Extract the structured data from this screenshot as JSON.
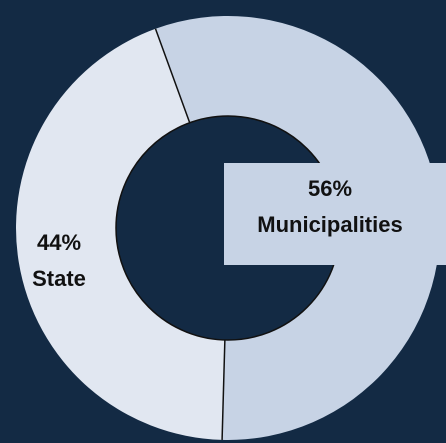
{
  "chart_data": {
    "type": "pie",
    "donut": true,
    "title": "",
    "slices": [
      {
        "category": "Municipalities",
        "value": 56,
        "value_label": "56%",
        "color": "#c7d3e5",
        "label_background": "#c7d3e5"
      },
      {
        "category": "State",
        "value": 44,
        "value_label": "44%",
        "color": "#e1e7f1",
        "label_background": null
      }
    ],
    "legend": "none",
    "background_color": "#132a44",
    "hole_color": "#132a44",
    "separator_color": "#111111"
  }
}
